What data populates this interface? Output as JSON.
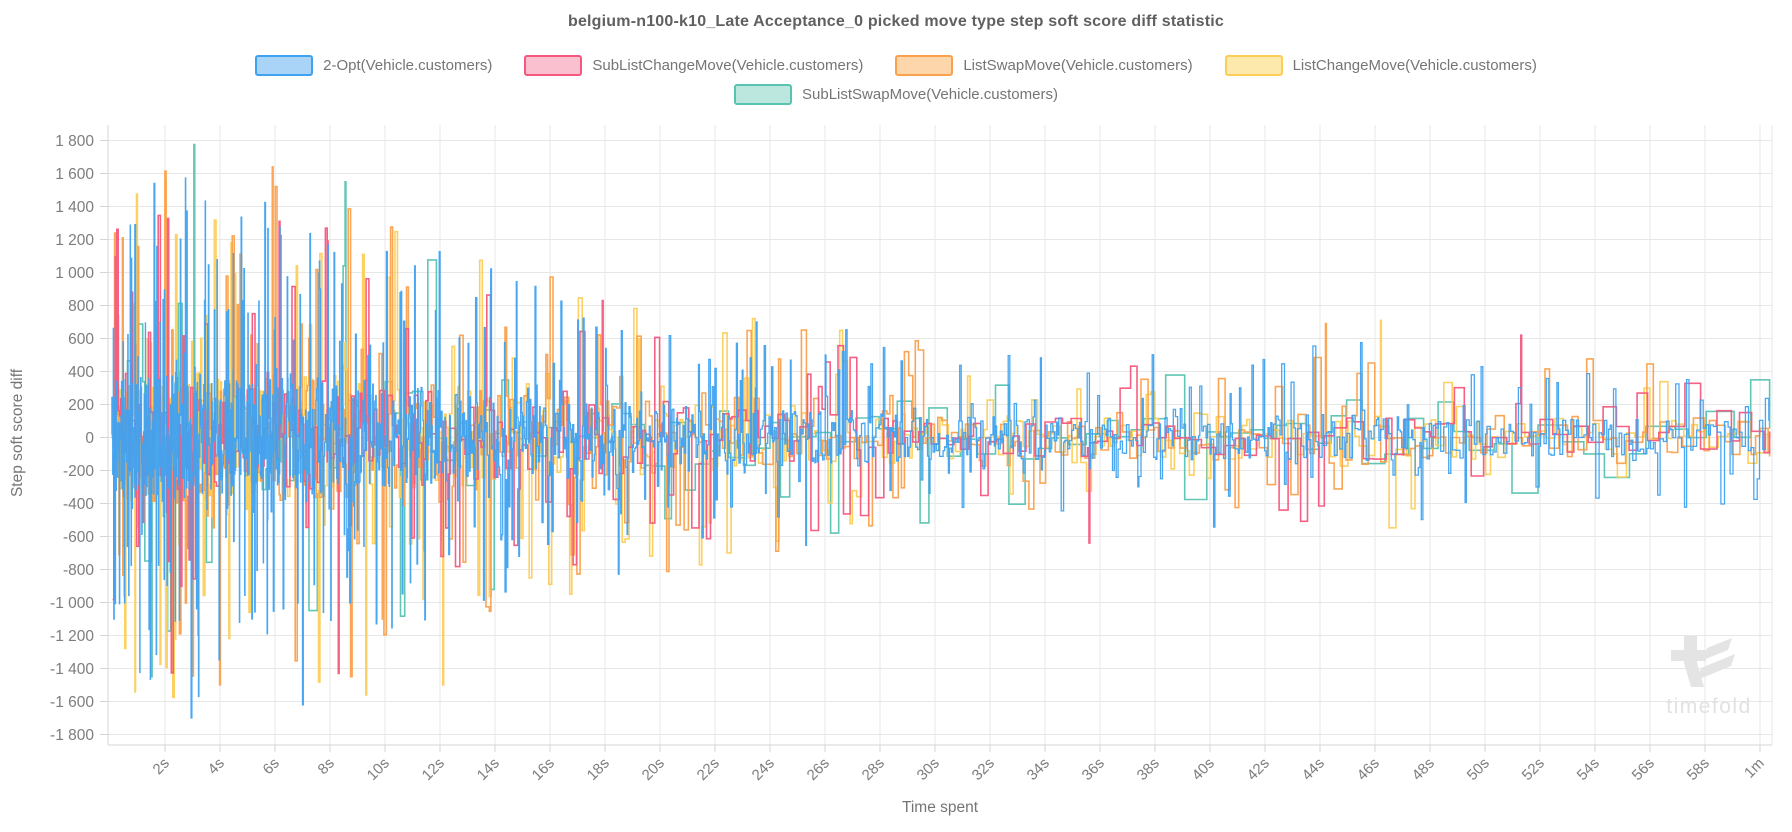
{
  "title": "belgium-n100-k10_Late Acceptance_0 picked move type step soft score diff statistic",
  "axes": {
    "y_title": "Step soft score diff",
    "x_title": "Time spent",
    "y_tick_labels": [
      "1 800",
      "1 600",
      "1 400",
      "1 200",
      "1 000",
      "800",
      "600",
      "400",
      "200",
      "0",
      "-200",
      "-400",
      "-600",
      "-800",
      "-1 000",
      "-1 200",
      "-1 400",
      "-1 600",
      "-1 800"
    ],
    "y_tick_values": [
      1800,
      1600,
      1400,
      1200,
      1000,
      800,
      600,
      400,
      200,
      0,
      -200,
      -400,
      -600,
      -800,
      -1000,
      -1200,
      -1400,
      -1600,
      -1800
    ],
    "x_ticks": [
      {
        "label": "2s",
        "seconds": 2
      },
      {
        "label": "4s",
        "seconds": 4
      },
      {
        "label": "6s",
        "seconds": 6
      },
      {
        "label": "8s",
        "seconds": 8
      },
      {
        "label": "10s",
        "seconds": 10
      },
      {
        "label": "12s",
        "seconds": 12
      },
      {
        "label": "14s",
        "seconds": 14
      },
      {
        "label": "16s",
        "seconds": 16
      },
      {
        "label": "18s",
        "seconds": 18
      },
      {
        "label": "20s",
        "seconds": 20
      },
      {
        "label": "22s",
        "seconds": 22
      },
      {
        "label": "24s",
        "seconds": 24
      },
      {
        "label": "26s",
        "seconds": 26
      },
      {
        "label": "28s",
        "seconds": 28
      },
      {
        "label": "30s",
        "seconds": 30
      },
      {
        "label": "32s",
        "seconds": 32
      },
      {
        "label": "34s",
        "seconds": 34
      },
      {
        "label": "36s",
        "seconds": 36
      },
      {
        "label": "38s",
        "seconds": 38
      },
      {
        "label": "40s",
        "seconds": 40
      },
      {
        "label": "42s",
        "seconds": 42
      },
      {
        "label": "44s",
        "seconds": 44
      },
      {
        "label": "46s",
        "seconds": 46
      },
      {
        "label": "48s",
        "seconds": 48
      },
      {
        "label": "50s",
        "seconds": 50
      },
      {
        "label": "52s",
        "seconds": 52
      },
      {
        "label": "54s",
        "seconds": 54
      },
      {
        "label": "56s",
        "seconds": 56
      },
      {
        "label": "58s",
        "seconds": 58
      },
      {
        "label": "1m",
        "seconds": 60
      }
    ]
  },
  "watermark": {
    "text": "timefold"
  },
  "colors": {
    "grid": "#e7e7e7",
    "axis_border": "#d6d6d6",
    "tick_text": "#7d7d7d",
    "title_text": "#606060",
    "watermark": "#e4e4e4",
    "watermark_text": "#e2e2e2"
  },
  "chart_data": {
    "type": "line",
    "stepped": true,
    "title": "belgium-n100-k10_Late Acceptance_0 picked move type step soft score diff statistic",
    "xlabel": "Time spent",
    "ylabel": "Step soft score diff",
    "x_range_seconds": [
      0,
      60
    ],
    "ylim": [
      -1800,
      1800
    ],
    "y_tick_step": 200,
    "grid": true,
    "legend_position": "top",
    "series": [
      {
        "name": "2-Opt(Vehicle.customers)",
        "color": "#3fa2f0",
        "legend_fill": "#a9d4f8",
        "step_seconds_initial": 0.009,
        "step_growth_seconds": 6,
        "amplitude_scale": 0.95,
        "seed": 11
      },
      {
        "name": "SubListChangeMove(Vehicle.customers)",
        "color": "#f4587e",
        "legend_fill": "#fbc0d0",
        "step_seconds_initial": 0.05,
        "step_growth_seconds": 8,
        "amplitude_scale": 0.9,
        "seed": 23
      },
      {
        "name": "ListSwapMove(Vehicle.customers)",
        "color": "#fba14d",
        "legend_fill": "#fdd6ab",
        "step_seconds_initial": 0.03,
        "step_growth_seconds": 7,
        "amplitude_scale": 1.0,
        "seed": 37
      },
      {
        "name": "ListChangeMove(Vehicle.customers)",
        "color": "#fcce58",
        "legend_fill": "#fee9ad",
        "step_seconds_initial": 0.028,
        "step_growth_seconds": 7,
        "amplitude_scale": 1.0,
        "seed": 49
      },
      {
        "name": "SubListSwapMove(Vehicle.customers)",
        "color": "#58c3b1",
        "legend_fill": "#bce7de",
        "step_seconds_initial": 0.12,
        "step_growth_seconds": 10,
        "amplitude_scale": 0.9,
        "seed": 61
      }
    ],
    "draw_order": [
      4,
      3,
      2,
      1,
      0
    ],
    "amplitude_envelope": [
      [
        0,
        1450
      ],
      [
        1,
        1600
      ],
      [
        2,
        1650
      ],
      [
        3,
        1700
      ],
      [
        4,
        1500
      ],
      [
        5,
        1450
      ],
      [
        6,
        1550
      ],
      [
        7,
        1500
      ],
      [
        8,
        1550
      ],
      [
        9,
        1500
      ],
      [
        10,
        1300
      ],
      [
        11,
        1250
      ],
      [
        12,
        1350
      ],
      [
        13,
        1150
      ],
      [
        14,
        1100
      ],
      [
        15,
        1050
      ],
      [
        16,
        1000
      ],
      [
        17,
        1050
      ],
      [
        18,
        1000
      ],
      [
        19,
        950
      ],
      [
        20,
        850
      ],
      [
        21,
        800
      ],
      [
        22,
        780
      ],
      [
        23,
        760
      ],
      [
        24,
        720
      ],
      [
        25,
        700
      ],
      [
        26,
        680
      ],
      [
        27,
        700
      ],
      [
        28,
        680
      ],
      [
        29,
        600
      ],
      [
        30,
        560
      ],
      [
        31,
        540
      ],
      [
        32,
        540
      ],
      [
        33,
        560
      ],
      [
        34,
        560
      ],
      [
        35,
        620
      ],
      [
        36,
        640
      ],
      [
        37,
        560
      ],
      [
        38,
        540
      ],
      [
        39,
        560
      ],
      [
        40,
        580
      ],
      [
        41,
        540
      ],
      [
        42,
        520
      ],
      [
        44,
        640
      ],
      [
        46,
        660
      ],
      [
        48,
        540
      ],
      [
        50,
        520
      ],
      [
        52,
        600
      ],
      [
        54,
        460
      ],
      [
        56,
        480
      ],
      [
        58,
        460
      ],
      [
        60,
        440
      ]
    ],
    "notable_spikes": [
      {
        "series": 0,
        "seconds": 0.9,
        "value": 1290
      },
      {
        "series": 0,
        "seconds": 1.6,
        "value": 1540
      },
      {
        "series": 0,
        "seconds": 2.95,
        "value": -1700
      },
      {
        "series": 0,
        "seconds": 7.0,
        "value": -1620
      },
      {
        "series": 0,
        "seconds": 23.5,
        "value": 700
      },
      {
        "series": 1,
        "seconds": 6.15,
        "value": 1310
      },
      {
        "series": 1,
        "seconds": 7.9,
        "value": 1190
      },
      {
        "series": 1,
        "seconds": 8.3,
        "value": -1430
      },
      {
        "series": 1,
        "seconds": 17.9,
        "value": 830
      },
      {
        "series": 1,
        "seconds": 35.6,
        "value": -640
      },
      {
        "series": 1,
        "seconds": 51.3,
        "value": 620
      },
      {
        "series": 2,
        "seconds": 0.45,
        "value": 1210
      },
      {
        "series": 2,
        "seconds": 5.9,
        "value": 1640
      },
      {
        "series": 2,
        "seconds": 9.9,
        "value": -1100
      },
      {
        "series": 2,
        "seconds": 44.2,
        "value": 690
      },
      {
        "series": 3,
        "seconds": 4.4,
        "value": 1180
      },
      {
        "series": 3,
        "seconds": 9.3,
        "value": -1560
      },
      {
        "series": 3,
        "seconds": 12.1,
        "value": -1500
      },
      {
        "series": 3,
        "seconds": 46.2,
        "value": 710
      },
      {
        "series": 4,
        "seconds": 1.5,
        "value": -1450
      },
      {
        "series": 4,
        "seconds": 3.05,
        "value": 1775
      },
      {
        "series": 4,
        "seconds": 8.55,
        "value": 1550
      }
    ]
  }
}
